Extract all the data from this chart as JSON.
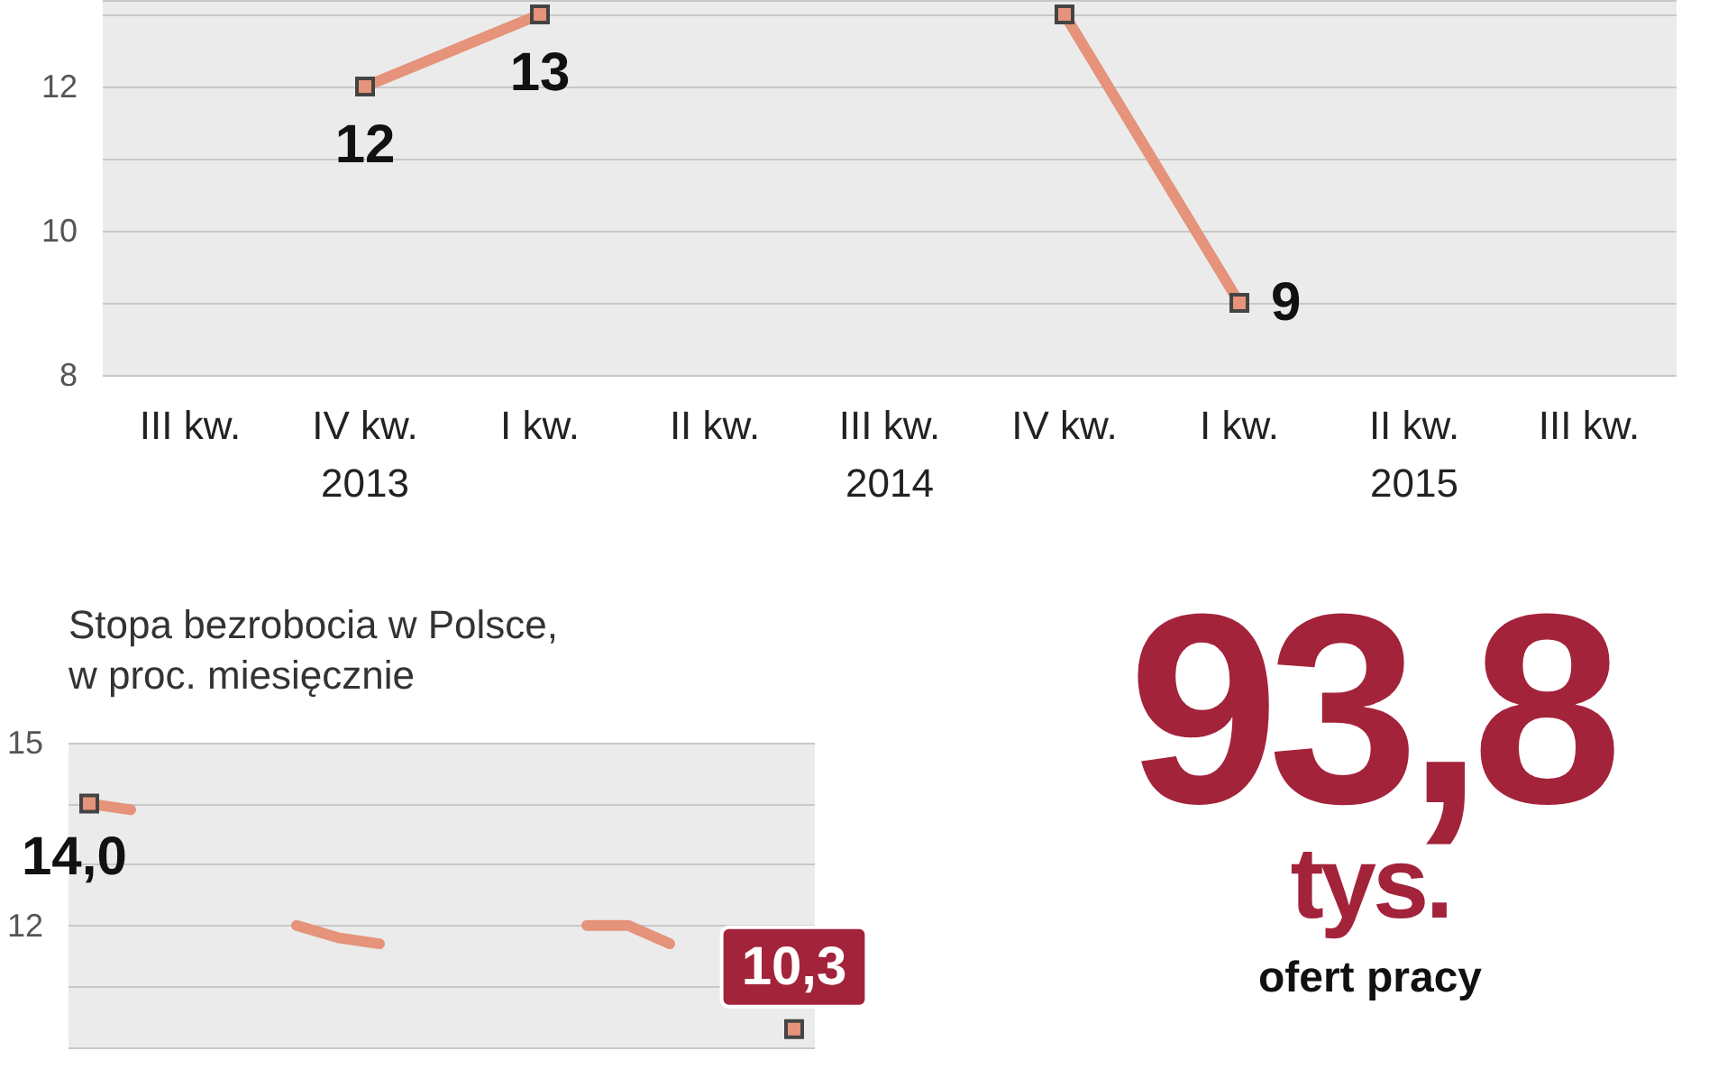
{
  "chart_data": [
    {
      "type": "line",
      "categories": [
        "III kw.",
        "IV kw.\n2013",
        "I kw.",
        "II kw.",
        "III kw.\n2014",
        "IV kw.",
        "I kw.",
        "II kw.\n2015",
        "III kw."
      ],
      "values": [
        null,
        12,
        13,
        null,
        null,
        13,
        9,
        null,
        null
      ],
      "value_labels": [
        null,
        "12",
        "13",
        null,
        null,
        null,
        "9",
        null,
        null
      ],
      "color": "#e5937a",
      "ylim": [
        8,
        13.2
      ],
      "yticks": [
        8,
        10,
        12
      ],
      "grid": "y",
      "marker": "square"
    },
    {
      "type": "line",
      "title": "Stopa bezrobocia w Polsce,\nw proc. miesięcznie",
      "categories": [
        null,
        null,
        null,
        null,
        null,
        null,
        null,
        null,
        null,
        null,
        null,
        null,
        null,
        null,
        null,
        null,
        null,
        null
      ],
      "values": [
        14.0,
        13.9,
        null,
        null,
        null,
        12.0,
        11.8,
        11.7,
        null,
        null,
        null,
        null,
        12.0,
        12.0,
        11.7,
        null,
        null,
        10.3
      ],
      "value_labels": [
        "14,0",
        null,
        null,
        null,
        null,
        null,
        null,
        null,
        null,
        null,
        null,
        null,
        null,
        null,
        null,
        null,
        null,
        "10,3"
      ],
      "color": "#e5937a",
      "ylim": [
        10,
        15
      ],
      "yticks": [
        15,
        12
      ],
      "grid": "y"
    },
    {
      "type": "other",
      "annotations": [
        "93,8",
        "tys.",
        "ofert pracy"
      ],
      "color": "#a3233a"
    }
  ]
}
